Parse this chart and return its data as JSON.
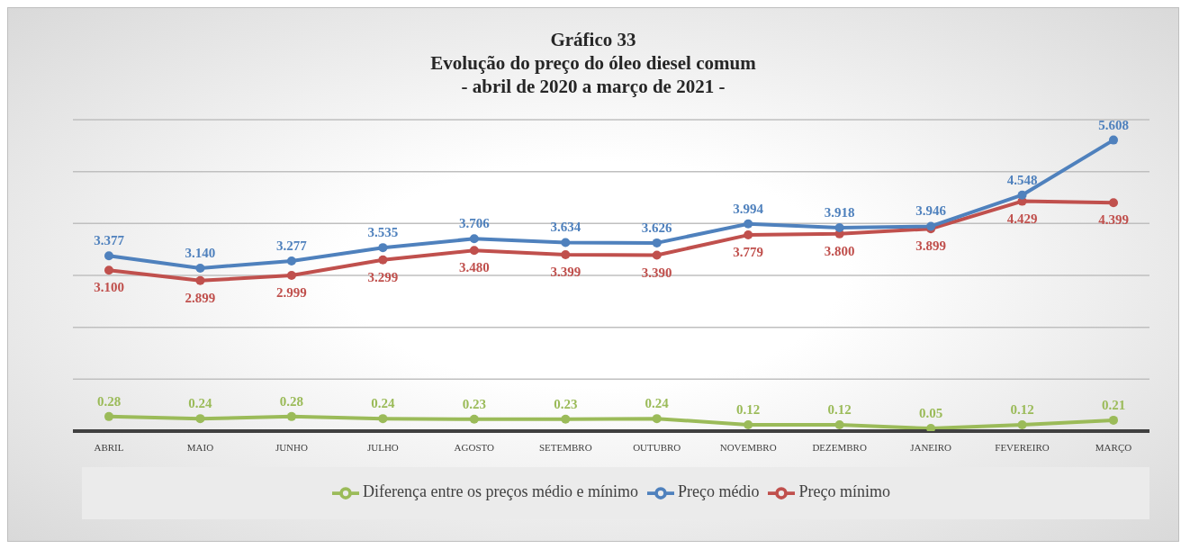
{
  "chart_data": {
    "type": "line",
    "title": "Gráfico 33",
    "subtitle": "Evolução do preço do óleo diesel comum\n- abril de 2020 a março de 2021 -",
    "categories": [
      "ABRIL",
      "MAIO",
      "JUNHO",
      "JULHO",
      "AGOSTO",
      "SETEMBRO",
      "OUTUBRO",
      "NOVEMBRO",
      "DEZEMBRO",
      "JANEIRO",
      "FEVEREIRO",
      "MARÇO"
    ],
    "series": [
      {
        "name": "Preço médio",
        "color": "#4f81bd",
        "values": [
          3.377,
          3.14,
          3.277,
          3.535,
          3.706,
          3.634,
          3.626,
          3.994,
          3.918,
          3.946,
          4.548,
          5.608
        ],
        "value_labels": [
          "3.377",
          "3.140",
          "3.277",
          "3.535",
          "3.706",
          "3.634",
          "3.626",
          "3.994",
          "3.918",
          "3.946",
          "4.548",
          "5.608"
        ]
      },
      {
        "name": "Preço mínimo",
        "color": "#c0504d",
        "values": [
          3.1,
          2.899,
          2.999,
          3.299,
          3.48,
          3.399,
          3.39,
          3.779,
          3.8,
          3.899,
          4.429,
          4.399
        ],
        "value_labels": [
          "3.100",
          "2.899",
          "2.999",
          "3.299",
          "3.480",
          "3.399",
          "3.390",
          "3.779",
          "3.800",
          "3.899",
          "4.429",
          "4.399"
        ]
      },
      {
        "name": "Diferença entre os preços médio e mínimo",
        "color": "#9bbb59",
        "values": [
          0.28,
          0.24,
          0.28,
          0.24,
          0.23,
          0.23,
          0.24,
          0.12,
          0.12,
          0.05,
          0.12,
          0.21
        ],
        "value_labels": [
          "0.28",
          "0.24",
          "0.28",
          "0.24",
          "0.23",
          "0.23",
          "0.24",
          "0.12",
          "0.12",
          "0.05",
          "0.12",
          "0.21"
        ]
      }
    ],
    "ylim": [
      0,
      6
    ],
    "yticks": [
      {
        "value": 0,
        "label": null
      },
      {
        "value": 1,
        "label": null
      },
      {
        "value": 2,
        "label": null
      },
      {
        "value": 3,
        "label": null
      },
      {
        "value": 4,
        "label": null
      },
      {
        "value": 5,
        "label": null
      },
      {
        "value": 6,
        "label": null
      }
    ],
    "tick_labels": "x",
    "grid": "y",
    "legend": "bottom",
    "marker": "circle",
    "line_style": "solid"
  }
}
